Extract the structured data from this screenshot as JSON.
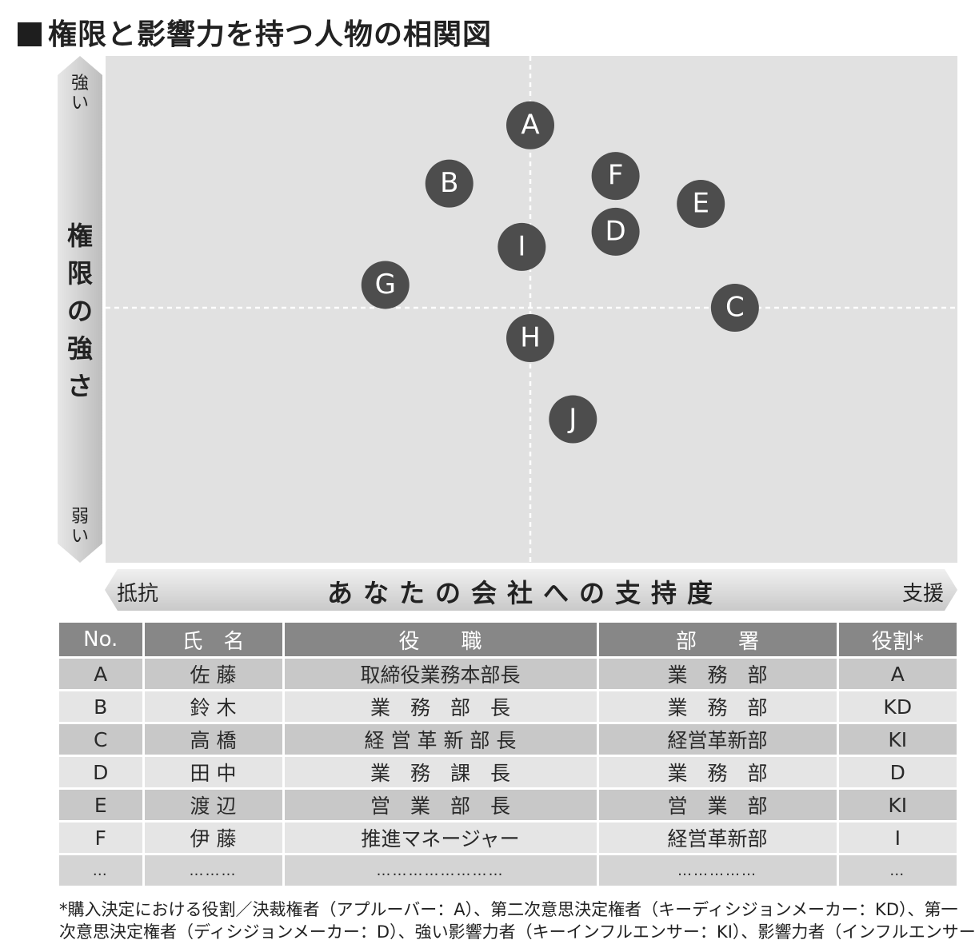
{
  "title": "権限と影響力を持つ人物の相関図",
  "y_axis": {
    "top": "強い",
    "label": "権限の強さ",
    "bottom": "弱い"
  },
  "x_axis": {
    "left": "抵抗",
    "label": "あなたの会社への支持度",
    "right": "支援"
  },
  "people": [
    {
      "id": "A",
      "support": 0.0,
      "authority": 0.72
    },
    {
      "id": "B",
      "support": -0.19,
      "authority": 0.49
    },
    {
      "id": "C",
      "support": 0.48,
      "authority": 0.0
    },
    {
      "id": "D",
      "support": 0.2,
      "authority": 0.3
    },
    {
      "id": "E",
      "support": 0.4,
      "authority": 0.41
    },
    {
      "id": "F",
      "support": 0.2,
      "authority": 0.52
    },
    {
      "id": "G",
      "support": -0.34,
      "authority": 0.09
    },
    {
      "id": "H",
      "support": 0.0,
      "authority": -0.12
    },
    {
      "id": "I",
      "support": -0.02,
      "authority": 0.24
    },
    {
      "id": "J",
      "support": 0.1,
      "authority": -0.44
    }
  ],
  "table": {
    "headers": [
      "No.",
      "氏　名",
      "役　　職",
      "部　　署",
      "役割*"
    ],
    "rows": [
      [
        "A",
        "佐 藤",
        "取締役業務本部長",
        "業　務　部",
        "A"
      ],
      [
        "B",
        "鈴 木",
        "業　務　部　長",
        "業　務　部",
        "KD"
      ],
      [
        "C",
        "高 橋",
        "経 営 革 新 部 長",
        "経営革新部",
        "KI"
      ],
      [
        "D",
        "田 中",
        "業　務　課　長",
        "業　務　部",
        "D"
      ],
      [
        "E",
        "渡 辺",
        "営　業　部　長",
        "営　業　部",
        "KI"
      ],
      [
        "F",
        "伊 藤",
        "推進マネージャー",
        "経営革新部",
        "I"
      ],
      [
        "…",
        "………",
        "……………………",
        "……………",
        "…"
      ]
    ]
  },
  "footnote": {
    "line1": "*購入決定における役割／決裁権者（アプルーバー：A）、第二次意思決定権者（キーディシジョンメーカー：KD）、第一",
    "line2": "次意思決定権者（ディシジョンメーカー：D）、強い影響力者（キーインフルエンサー：KI）、影響力者（インフルエンサー：I）"
  },
  "colors": {
    "plot_bg": "#e1e1e1",
    "node": "#4d4d4d",
    "header": "#878787"
  }
}
